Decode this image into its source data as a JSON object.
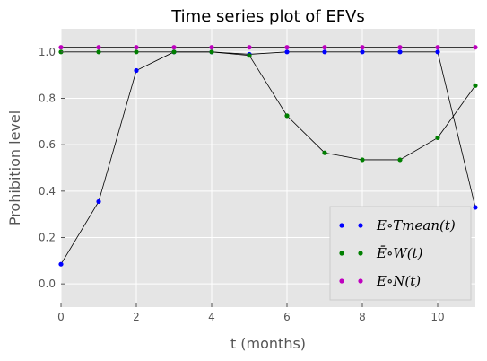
{
  "chart_data": {
    "type": "scatter",
    "title": "Time series plot of EFVs",
    "xlabel": "t (months)",
    "ylabel": "Prohibition level",
    "xlim": [
      0,
      11
    ],
    "ylim": [
      -0.1,
      1.1
    ],
    "xticks": [
      0,
      2,
      4,
      6,
      8,
      10
    ],
    "xtick_labels": [
      "0",
      "2",
      "4",
      "6",
      "8",
      "10"
    ],
    "yticks": [
      0.0,
      0.2,
      0.4,
      0.6,
      0.8,
      1.0
    ],
    "ytick_labels": [
      "0.0",
      "0.2",
      "0.4",
      "0.6",
      "0.8",
      "1.0"
    ],
    "grid": true,
    "legend_position": "lower-right",
    "x": [
      0,
      1,
      2,
      3,
      4,
      5,
      6,
      7,
      8,
      9,
      10,
      11
    ],
    "series": [
      {
        "name": "E∘Tmean(t)",
        "color": "#0000ff",
        "values": [
          0.085,
          0.355,
          0.92,
          1.0,
          1.0,
          0.99,
          1.0,
          1.0,
          1.0,
          1.0,
          1.0,
          0.33
        ]
      },
      {
        "name": "Ē∘W(t)",
        "color": "#007f00",
        "values": [
          1.0,
          1.0,
          1.0,
          1.0,
          1.0,
          0.985,
          0.725,
          0.565,
          0.535,
          0.535,
          0.63,
          0.855
        ]
      },
      {
        "name": "E∘N(t)",
        "color": "#bf00bf",
        "values": [
          1.02,
          1.02,
          1.02,
          1.02,
          1.02,
          1.02,
          1.02,
          1.02,
          1.02,
          1.02,
          1.02,
          1.02
        ]
      }
    ],
    "connecting_line_color": "#000000",
    "background_color": "#e5e5e5",
    "grid_color": "#ffffff"
  }
}
